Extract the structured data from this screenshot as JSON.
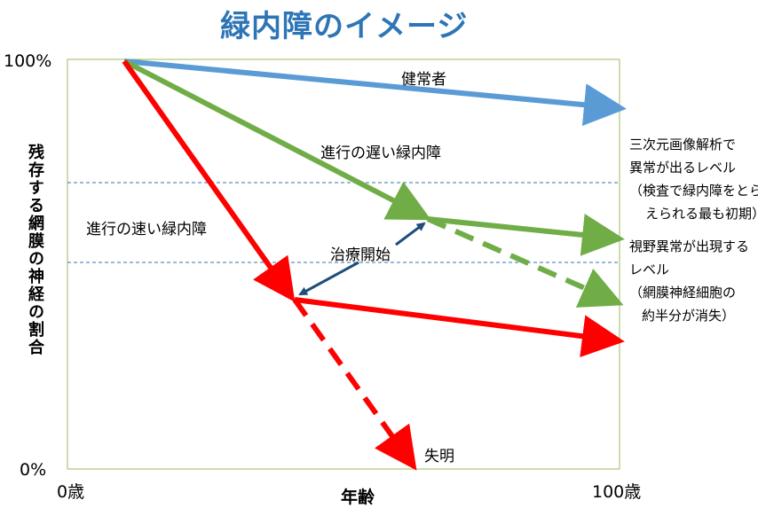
{
  "title": "緑内障のイメージ",
  "y_axis": {
    "label": "残存する網膜の神経の割合",
    "top_tick": "100%",
    "bottom_tick": "0%"
  },
  "x_axis": {
    "label": "年齢",
    "left_tick": "0歳",
    "right_tick": "100歳"
  },
  "labels": {
    "healthy": "健常者",
    "slow": "進行の遅い緑内障",
    "fast": "進行の速い緑内障",
    "treatment": "治療開始",
    "blindness": "失明"
  },
  "threshold_notes": {
    "upper": [
      "三次元画像解析で",
      "異常が出るレベル",
      "（検査で緑内障をとら",
      "えられる最も初期）"
    ],
    "lower": [
      "視野異常が出現する",
      "レベル",
      "（網膜神経細胞の",
      "約半分が消失）"
    ]
  },
  "colors": {
    "healthy": "#5b9bd5",
    "slow": "#70ad47",
    "fast": "#ff0000",
    "title": "#2e75b6",
    "threshold": "#2e75b6",
    "treatment_arrow": "#1f4e79",
    "frame": "#9bbb59"
  }
}
